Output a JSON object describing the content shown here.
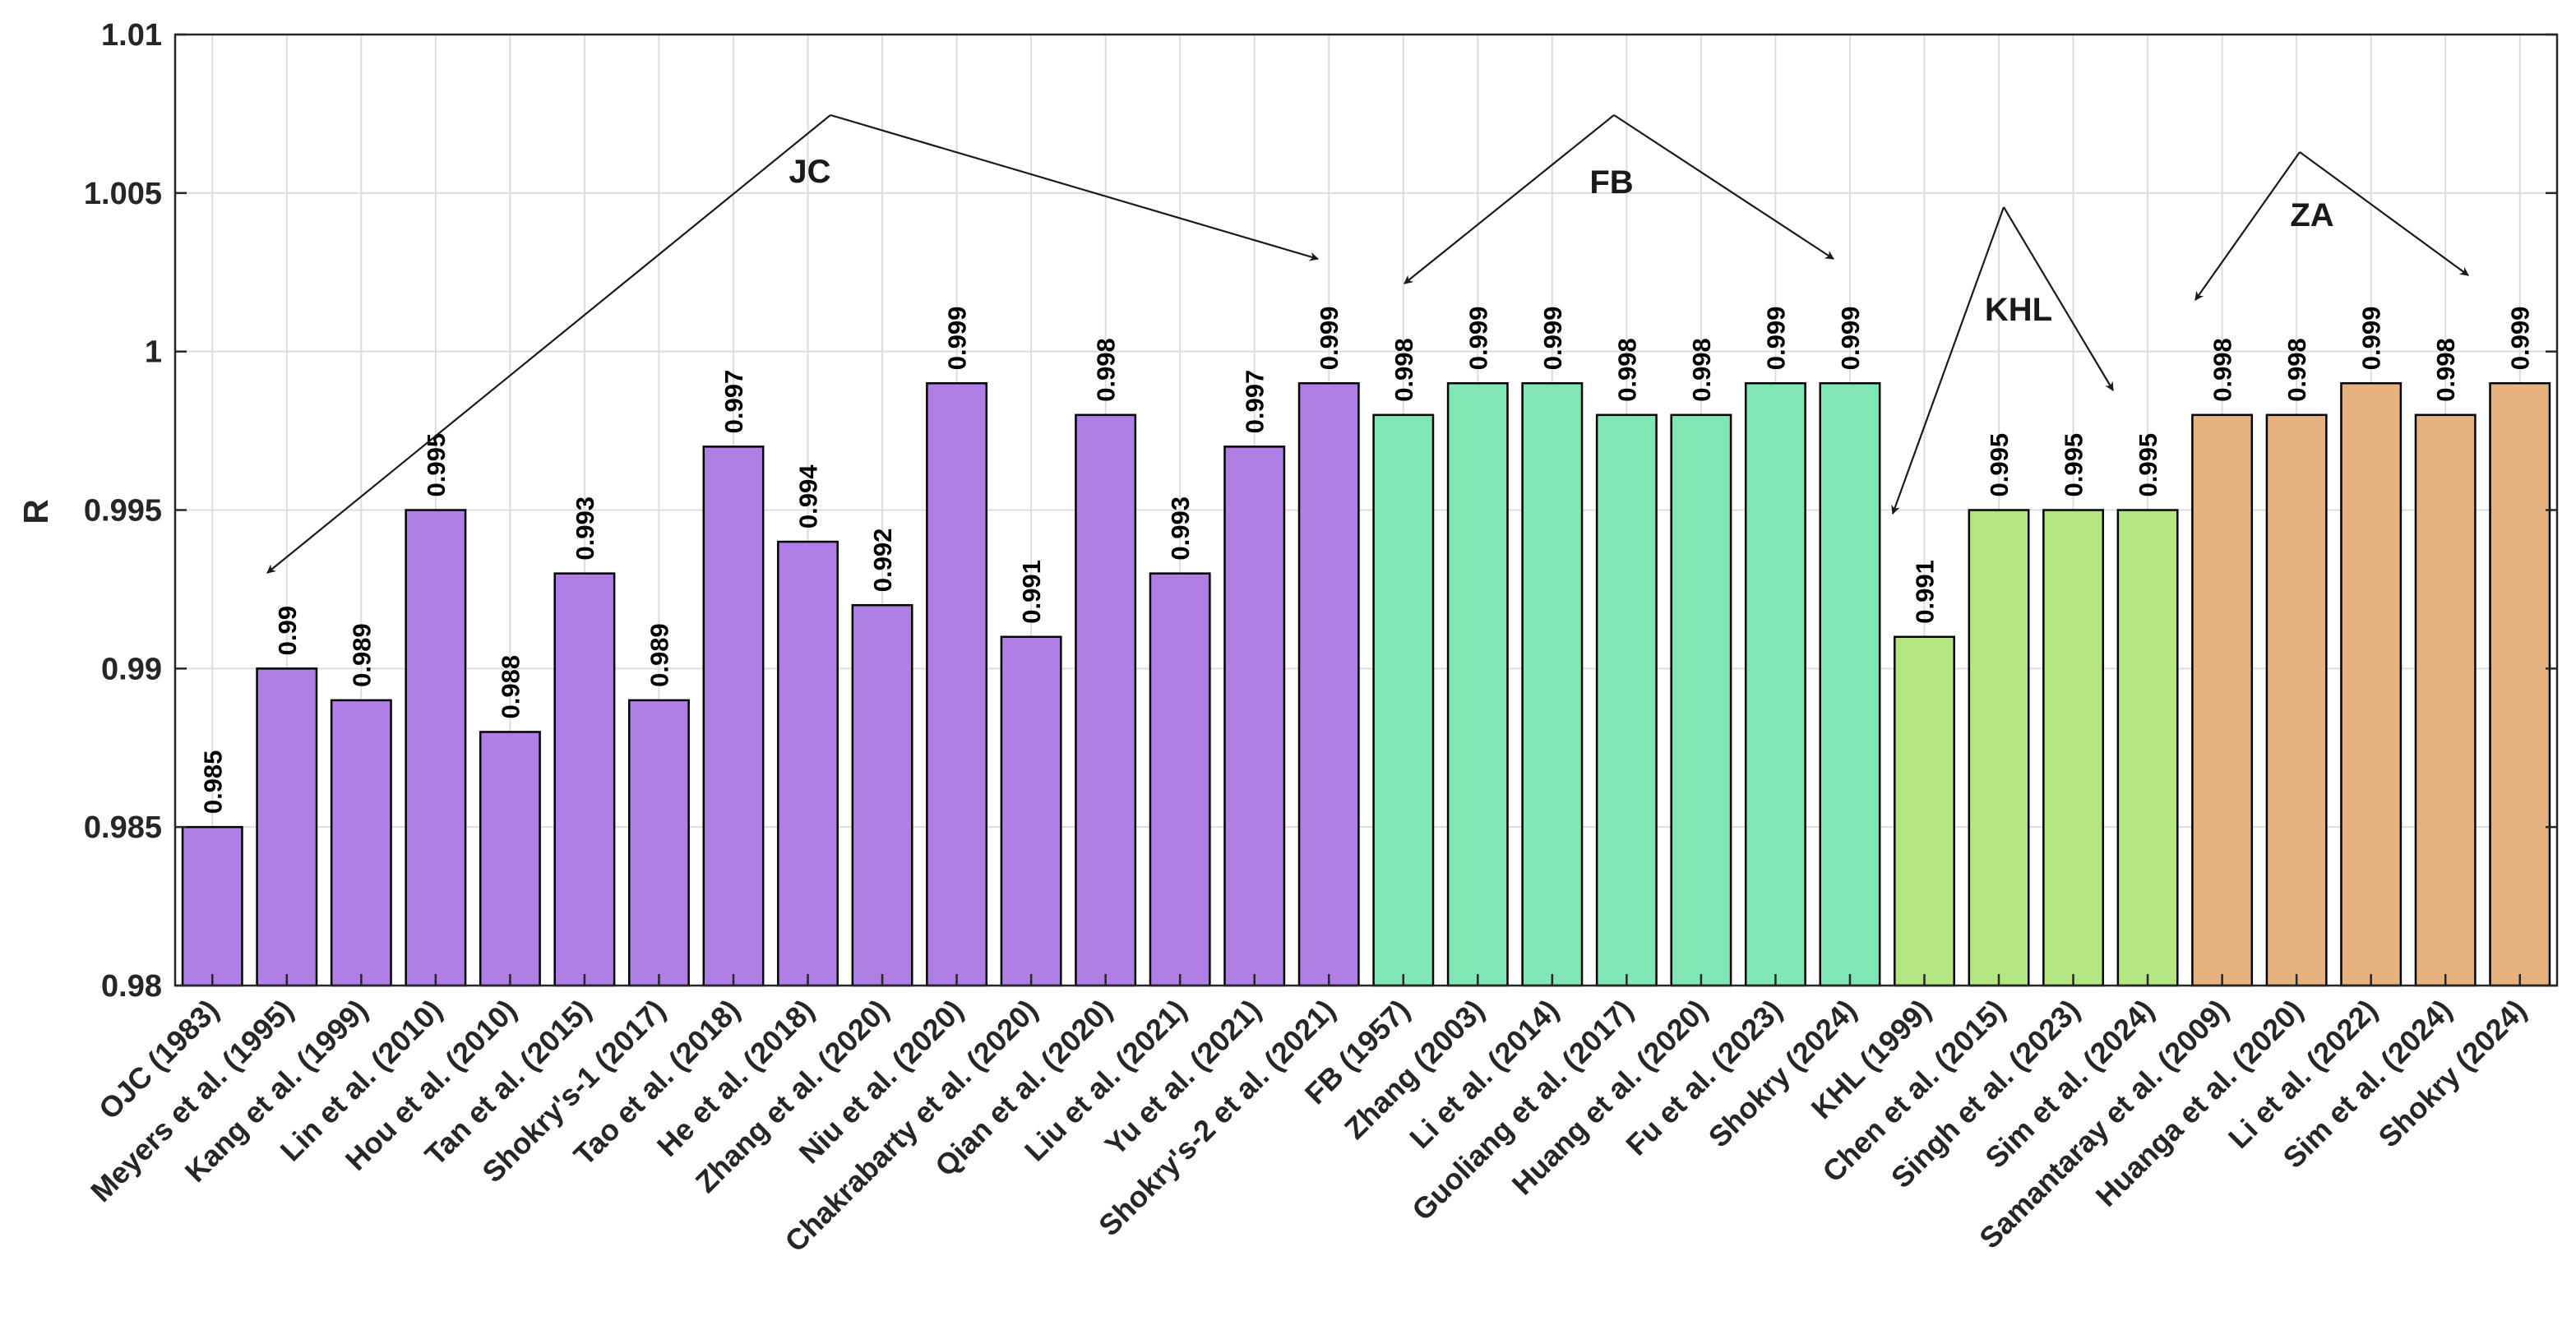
{
  "chart_data": {
    "type": "bar",
    "title": "",
    "xlabel": "",
    "ylabel": "R",
    "ylim": [
      0.98,
      1.01
    ],
    "yticks": [
      0.98,
      0.985,
      0.99,
      0.995,
      1,
      1.005,
      1.01
    ],
    "ytick_labels": [
      "0.98",
      "0.985",
      "0.99",
      "0.995",
      "1",
      "1.005",
      "1.01"
    ],
    "grid": true,
    "categories": [
      "OJC (1983)",
      "Meyers et al. (1995)",
      "Kang et al. (1999)",
      "Lin et al. (2010)",
      "Hou et al. (2010)",
      "Tan et al. (2015)",
      "Shokry's-1 (2017)",
      "Tao et al. (2018)",
      "He et al. (2018)",
      "Zhang et al. (2020)",
      "Niu et al. (2020)",
      "Chakrabarty et al. (2020)",
      "Qian et al. (2020)",
      "Liu et al. (2021)",
      "Yu et al. (2021)",
      "Shokry's-2 et al. (2021)",
      "FB (1957)",
      "Zhang (2003)",
      "Li et al. (2014)",
      "Guoliang et al. (2017)",
      "Huang et al. (2020)",
      "Fu et al. (2023)",
      "Shokry (2024)",
      "KHL (1999)",
      "Chen et al. (2015)",
      "Singh et al. (2023)",
      "Sim et al. (2024)",
      "Samantaray et al. (2009)",
      "Huanga et al. (2020)",
      "Li et al. (2022)",
      "Sim et al. (2024)",
      "Shokry (2024)"
    ],
    "values": [
      0.985,
      0.99,
      0.989,
      0.995,
      0.988,
      0.993,
      0.989,
      0.997,
      0.994,
      0.992,
      0.999,
      0.991,
      0.998,
      0.993,
      0.997,
      0.999,
      0.998,
      0.999,
      0.999,
      0.998,
      0.998,
      0.999,
      0.999,
      0.991,
      0.995,
      0.995,
      0.995,
      0.998,
      0.998,
      0.999,
      0.998,
      0.999
    ],
    "value_labels": [
      "0.985",
      "0.99",
      "0.989",
      "0.995",
      "0.988",
      "0.993",
      "0.989",
      "0.997",
      "0.994",
      "0.992",
      "0.999",
      "0.991",
      "0.998",
      "0.993",
      "0.997",
      "0.999",
      "0.998",
      "0.999",
      "0.999",
      "0.998",
      "0.998",
      "0.999",
      "0.999",
      "0.991",
      "0.995",
      "0.995",
      "0.995",
      "0.998",
      "0.998",
      "0.999",
      "0.998",
      "0.999"
    ],
    "groups": [
      {
        "name": "JC",
        "start": 0,
        "end": 15,
        "color": "#b07fe6"
      },
      {
        "name": "FB",
        "start": 16,
        "end": 22,
        "color": "#80e6b3"
      },
      {
        "name": "KHL",
        "start": 23,
        "end": 26,
        "color": "#b3e680"
      },
      {
        "name": "ZA",
        "start": 27,
        "end": 31,
        "color": "#e6b380"
      }
    ]
  }
}
